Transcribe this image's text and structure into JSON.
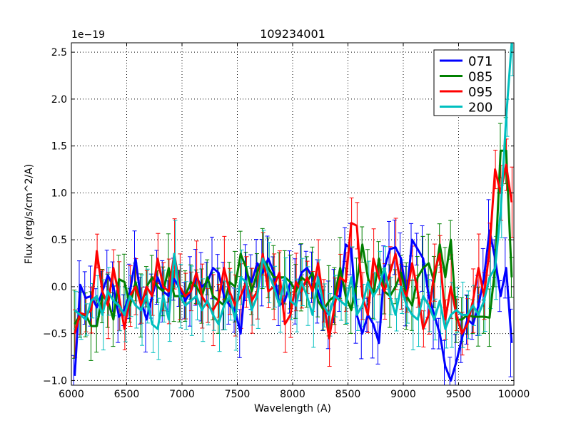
{
  "chart_data": {
    "type": "line",
    "title": "109234001",
    "xlabel": "Wavelength (A)",
    "ylabel": "Flux (erg/s/cm^2/A)",
    "offset_label": "1e−19",
    "xlim": [
      6000,
      10000
    ],
    "ylim": [
      -1.05,
      2.6
    ],
    "x_ticks": [
      6000,
      6500,
      7000,
      7500,
      8000,
      8500,
      9000,
      9500,
      10000
    ],
    "x_tick_labels": [
      "6000",
      "6500",
      "7000",
      "7500",
      "8000",
      "8500",
      "9000",
      "9500",
      "10000"
    ],
    "y_ticks": [
      -1.0,
      -0.5,
      0.0,
      0.5,
      1.0,
      1.5,
      2.0,
      2.5
    ],
    "y_tick_labels": [
      "−1.0",
      "−0.5",
      "0.0",
      "0.5",
      "1.0",
      "1.5",
      "2.0",
      "2.5"
    ],
    "grid": true,
    "legend_position": "top-right",
    "series": [
      {
        "name": "071",
        "color": "#0000ff",
        "x": [
          6030,
          6080,
          6130,
          6180,
          6230,
          6280,
          6330,
          6380,
          6430,
          6480,
          6530,
          6580,
          6630,
          6680,
          6730,
          6780,
          6830,
          6880,
          6930,
          6980,
          7030,
          7080,
          7130,
          7180,
          7230,
          7280,
          7330,
          7380,
          7430,
          7480,
          7530,
          7580,
          7630,
          7680,
          7730,
          7780,
          7830,
          7880,
          7930,
          7980,
          8030,
          8080,
          8130,
          8180,
          8230,
          8280,
          8330,
          8380,
          8430,
          8480,
          8530,
          8580,
          8630,
          8680,
          8730,
          8780,
          8830,
          8880,
          8930,
          8980,
          9030,
          9080,
          9130,
          9180,
          9230,
          9280,
          9330,
          9380,
          9430,
          9480,
          9530,
          9580,
          9630,
          9680,
          9730,
          9780,
          9830,
          9880,
          9930,
          9980
        ],
        "y": [
          -0.95,
          0.02,
          -0.12,
          -0.1,
          -0.22,
          -0.05,
          0.12,
          0.0,
          -0.32,
          -0.25,
          -0.05,
          0.3,
          -0.15,
          -0.35,
          -0.1,
          0.1,
          -0.05,
          -0.1,
          0.08,
          -0.02,
          -0.15,
          -0.05,
          0.1,
          0.0,
          0.05,
          0.2,
          0.15,
          -0.1,
          -0.2,
          -0.25,
          -0.5,
          0.15,
          0.05,
          0.25,
          0.15,
          0.3,
          0.15,
          -0.2,
          -0.15,
          0.05,
          -0.05,
          0.15,
          0.2,
          0.1,
          -0.05,
          -0.25,
          -0.3,
          -0.1,
          -0.1,
          0.45,
          0.4,
          -0.3,
          -0.5,
          -0.3,
          -0.4,
          -0.6,
          0.2,
          0.4,
          0.42,
          0.3,
          -0.1,
          0.5,
          0.4,
          0.3,
          -0.1,
          -0.3,
          -0.5,
          -0.85,
          -1.0,
          -0.8,
          -0.55,
          -0.35,
          -0.4,
          -0.2,
          0.1,
          0.6,
          0.3,
          -0.1,
          0.2,
          -0.6
        ]
      },
      {
        "name": "085",
        "color": "#008000",
        "x": [
          6030,
          6080,
          6130,
          6180,
          6230,
          6280,
          6330,
          6380,
          6430,
          6480,
          6530,
          6580,
          6630,
          6680,
          6730,
          6780,
          6830,
          6880,
          6930,
          6980,
          7030,
          7080,
          7130,
          7180,
          7230,
          7280,
          7330,
          7380,
          7430,
          7480,
          7530,
          7580,
          7630,
          7680,
          7730,
          7780,
          7830,
          7880,
          7930,
          7980,
          8030,
          8080,
          8130,
          8180,
          8230,
          8280,
          8330,
          8380,
          8430,
          8480,
          8530,
          8580,
          8630,
          8680,
          8730,
          8780,
          8830,
          8880,
          8930,
          8980,
          9030,
          9080,
          9130,
          9180,
          9230,
          9280,
          9330,
          9380,
          9430,
          9480,
          9530,
          9580,
          9630,
          9680,
          9730,
          9780,
          9830,
          9880,
          9930,
          9980
        ],
        "y": [
          -0.4,
          -0.3,
          -0.3,
          -0.42,
          -0.42,
          -0.1,
          -0.15,
          -0.35,
          0.08,
          0.05,
          -0.2,
          0.05,
          -0.2,
          0.0,
          0.1,
          0.0,
          -0.05,
          0.2,
          -0.1,
          -0.1,
          -0.1,
          0.05,
          0.0,
          -0.1,
          0.1,
          -0.1,
          -0.15,
          -0.2,
          0.05,
          0.0,
          0.35,
          0.2,
          -0.05,
          0.15,
          0.3,
          0.2,
          0.1,
          0.1,
          0.1,
          0.05,
          -0.05,
          0.1,
          0.05,
          0.15,
          -0.15,
          -0.25,
          -0.15,
          -0.1,
          0.2,
          -0.1,
          -0.25,
          0.05,
          0.45,
          0.1,
          -0.1,
          0.3,
          -0.05,
          -0.1,
          0.0,
          0.15,
          -0.1,
          -0.2,
          0.1,
          0.2,
          0.25,
          0.05,
          0.45,
          0.1,
          0.5,
          -0.35,
          -0.35,
          -0.3,
          -0.32,
          -0.32,
          -0.32,
          -0.33,
          0.2,
          1.45,
          1.45,
          0.1
        ]
      },
      {
        "name": "095",
        "color": "#ff0000",
        "x": [
          6030,
          6080,
          6130,
          6180,
          6230,
          6280,
          6330,
          6380,
          6430,
          6480,
          6530,
          6580,
          6630,
          6680,
          6730,
          6780,
          6830,
          6880,
          6930,
          6980,
          7030,
          7080,
          7130,
          7180,
          7230,
          7280,
          7330,
          7380,
          7430,
          7480,
          7530,
          7580,
          7630,
          7680,
          7730,
          7780,
          7830,
          7880,
          7930,
          7980,
          8030,
          8080,
          8130,
          8180,
          8230,
          8280,
          8330,
          8380,
          8430,
          8480,
          8530,
          8580,
          8630,
          8680,
          8730,
          8780,
          8830,
          8880,
          8930,
          8980,
          9030,
          9080,
          9130,
          9180,
          9230,
          9280,
          9330,
          9380,
          9430,
          9480,
          9530,
          9580,
          9630,
          9680,
          9730,
          9780,
          9830,
          9880,
          9930,
          9980
        ],
        "y": [
          -0.5,
          -0.28,
          -0.3,
          -0.25,
          0.38,
          -0.05,
          -0.2,
          0.2,
          -0.1,
          -0.45,
          -0.1,
          0.0,
          -0.2,
          0.0,
          -0.1,
          0.3,
          0.0,
          -0.05,
          0.35,
          0.0,
          -0.1,
          -0.05,
          0.15,
          -0.1,
          -0.2,
          -0.25,
          -0.15,
          0.2,
          -0.05,
          -0.2,
          -0.1,
          0.05,
          -0.15,
          -0.05,
          0.35,
          -0.05,
          0.0,
          0.15,
          -0.4,
          -0.3,
          0.05,
          -0.05,
          0.1,
          -0.05,
          0.25,
          -0.15,
          -0.55,
          -0.2,
          0.1,
          0.05,
          0.68,
          0.65,
          -0.1,
          -0.3,
          0.3,
          0.1,
          -0.05,
          0.15,
          0.35,
          0.0,
          -0.1,
          0.25,
          -0.05,
          -0.45,
          -0.3,
          0.15,
          0.35,
          -0.35,
          0.0,
          -0.3,
          -0.5,
          -0.4,
          -0.15,
          0.2,
          -0.1,
          0.4,
          1.25,
          1.0,
          1.3,
          0.9
        ]
      },
      {
        "name": "200",
        "color": "#00bfbf",
        "x": [
          6030,
          6080,
          6130,
          6180,
          6230,
          6280,
          6330,
          6380,
          6430,
          6480,
          6530,
          6580,
          6630,
          6680,
          6730,
          6780,
          6830,
          6880,
          6930,
          6980,
          7030,
          7080,
          7130,
          7180,
          7230,
          7280,
          7330,
          7380,
          7430,
          7480,
          7530,
          7580,
          7630,
          7680,
          7730,
          7780,
          7830,
          7880,
          7930,
          7980,
          8030,
          8080,
          8130,
          8180,
          8230,
          8280,
          8330,
          8380,
          8430,
          8480,
          8530,
          8580,
          8630,
          8680,
          8730,
          8780,
          8830,
          8880,
          8930,
          8980,
          9030,
          9080,
          9130,
          9180,
          9230,
          9280,
          9330,
          9380,
          9430,
          9480,
          9530,
          9580,
          9630,
          9680,
          9730,
          9780,
          9830,
          9880,
          9930,
          9980
        ],
        "y": [
          -0.25,
          -0.3,
          -0.35,
          -0.15,
          -0.1,
          -0.3,
          -0.05,
          -0.15,
          -0.2,
          -0.3,
          -0.1,
          -0.2,
          -0.25,
          -0.1,
          -0.4,
          -0.45,
          -0.1,
          -0.35,
          0.35,
          -0.1,
          -0.2,
          -0.15,
          -0.1,
          -0.25,
          -0.15,
          -0.3,
          -0.4,
          -0.2,
          -0.1,
          -0.35,
          0.1,
          0.05,
          -0.25,
          -0.1,
          0.3,
          0.15,
          0.0,
          -0.2,
          0.1,
          -0.15,
          -0.2,
          0.05,
          -0.1,
          -0.3,
          0.1,
          -0.2,
          -0.3,
          -0.1,
          -0.15,
          -0.2,
          0.1,
          -0.3,
          -0.2,
          0.05,
          -0.1,
          0.0,
          0.2,
          -0.1,
          -0.3,
          0.0,
          -0.2,
          -0.3,
          -0.35,
          -0.1,
          -0.2,
          -0.35,
          -0.15,
          -0.45,
          -0.3,
          -0.25,
          -0.3,
          -0.3,
          -0.2,
          -0.3,
          -0.15,
          0.1,
          0.2,
          0.8,
          1.8,
          2.6
        ]
      }
    ]
  }
}
